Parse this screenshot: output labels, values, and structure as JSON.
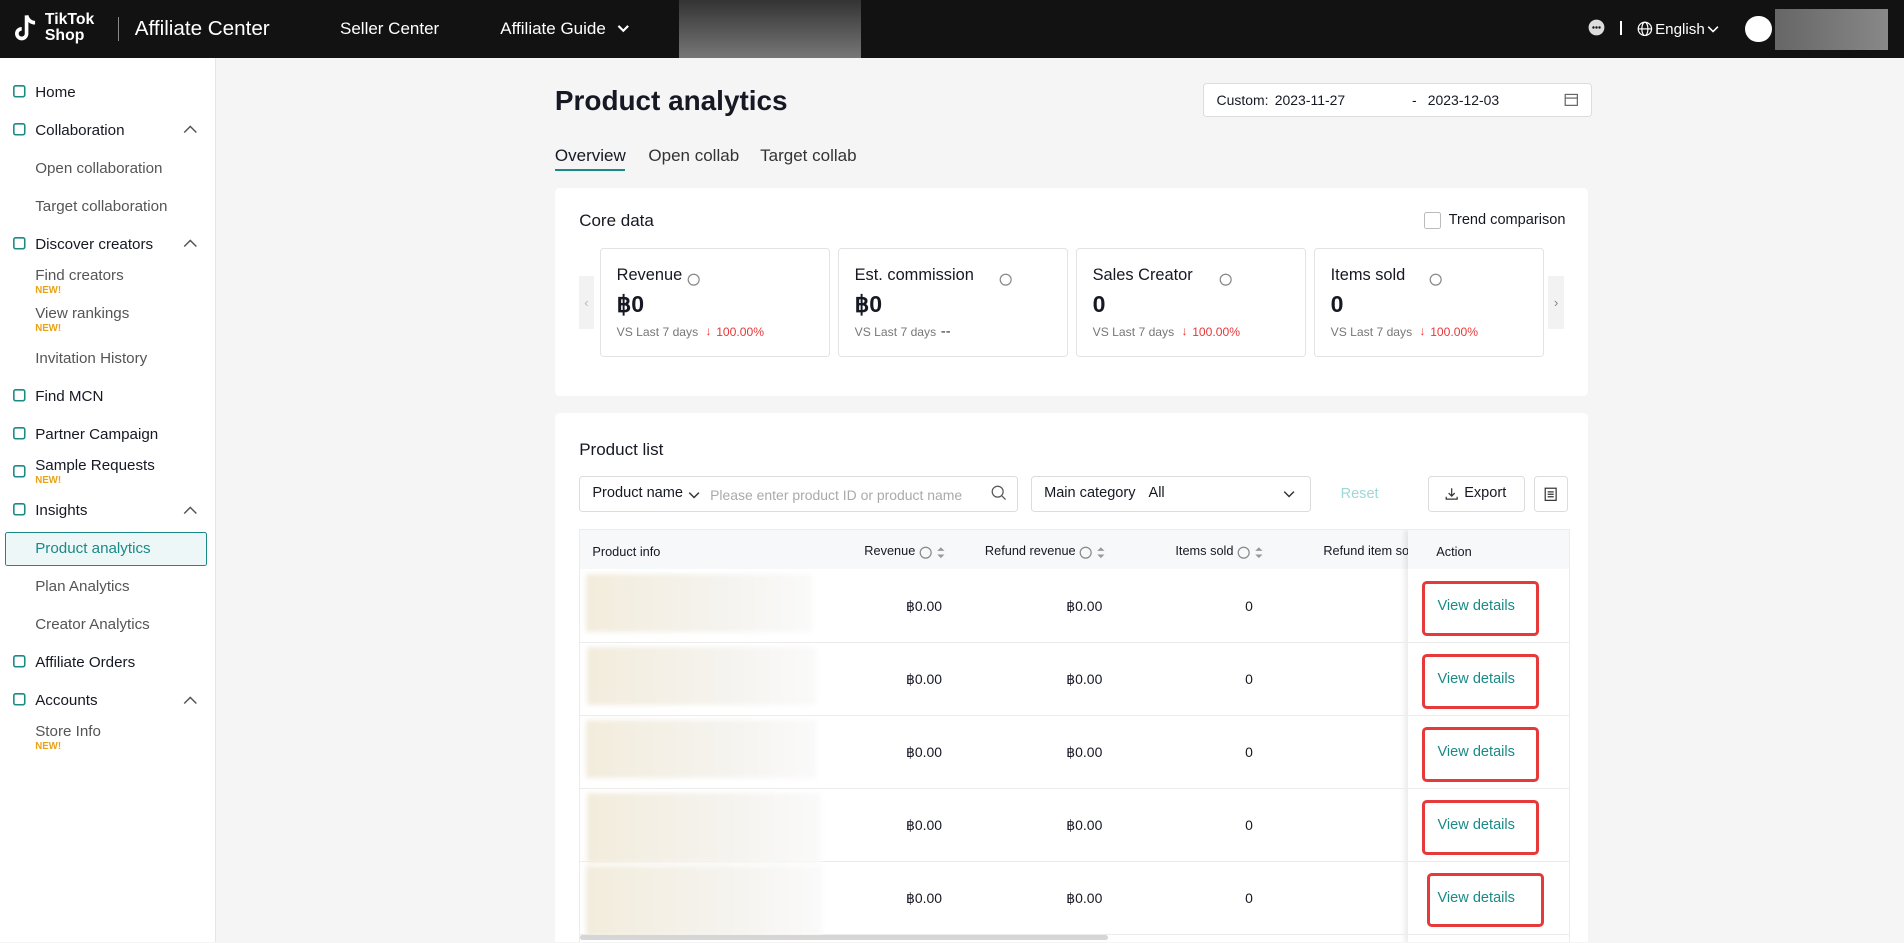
{
  "header": {
    "logo_top": "TikTok",
    "logo_bottom": "Shop",
    "app_name": "Affiliate Center",
    "nav": [
      "Seller Center",
      "Affiliate Guide"
    ],
    "language": "English"
  },
  "sidebar": {
    "items": [
      {
        "label": "Home"
      },
      {
        "label": "Collaboration",
        "children": [
          {
            "label": "Open collaboration"
          },
          {
            "label": "Target collaboration"
          }
        ]
      },
      {
        "label": "Discover creators",
        "children": [
          {
            "label": "Find creators",
            "badge": "NEW!"
          },
          {
            "label": "View rankings",
            "badge": "NEW!"
          },
          {
            "label": "Invitation History"
          }
        ]
      },
      {
        "label": "Find MCN"
      },
      {
        "label": "Partner Campaign"
      },
      {
        "label": "Sample Requests",
        "badge": "NEW!"
      },
      {
        "label": "Insights",
        "children": [
          {
            "label": "Product analytics",
            "selected": true
          },
          {
            "label": "Plan Analytics"
          },
          {
            "label": "Creator Analytics"
          }
        ]
      },
      {
        "label": "Affiliate Orders"
      },
      {
        "label": "Accounts",
        "children": [
          {
            "label": "Store Info",
            "badge": "NEW!"
          }
        ]
      }
    ]
  },
  "page": {
    "title": "Product analytics",
    "date_range": {
      "prefix": "Custom:",
      "start": "2023-11-27",
      "separator": "-",
      "end": "2023-12-03"
    },
    "tabs": [
      {
        "label": "Overview",
        "selected": true
      },
      {
        "label": "Open collab"
      },
      {
        "label": "Target collab"
      }
    ]
  },
  "core_data": {
    "title": "Core data",
    "trend_toggle": "Trend comparison",
    "cards": [
      {
        "label": "Revenue",
        "value": "฿0",
        "compare": "VS Last 7 days",
        "change": "100.00%",
        "direction": "down"
      },
      {
        "label": "Est. commission",
        "value": "฿0",
        "compare": "VS Last 7 days",
        "change": "--"
      },
      {
        "label": "Sales Creator",
        "value": "0",
        "compare": "VS Last 7 days",
        "change": "100.00%",
        "direction": "down"
      },
      {
        "label": "Items sold",
        "value": "0",
        "compare": "VS Last 7 days",
        "change": "100.00%",
        "direction": "down"
      }
    ]
  },
  "product_list": {
    "title": "Product list",
    "search_field": "Product name",
    "search_placeholder": "Please enter product ID or product name",
    "category_label": "Main category",
    "category_value": "All",
    "reset": "Reset",
    "export": "Export",
    "table": {
      "columns": [
        "Product info",
        "Revenue",
        "Refund revenue",
        "Items sold",
        "Refund item so",
        "Action"
      ],
      "rows": [
        [
          "฿0.00",
          "฿0.00",
          "0",
          "View details"
        ],
        [
          "฿0.00",
          "฿0.00",
          "0",
          "View details"
        ],
        [
          "฿0.00",
          "฿0.00",
          "0",
          "View details"
        ],
        [
          "฿0.00",
          "฿0.00",
          "0",
          "View details"
        ],
        [
          "฿0.00",
          "฿0.00",
          "0",
          "View details"
        ]
      ]
    }
  }
}
